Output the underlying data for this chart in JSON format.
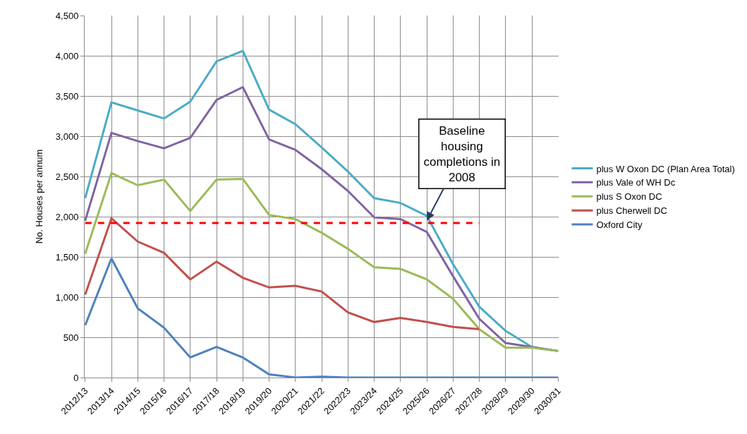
{
  "chart_data": {
    "type": "line",
    "ylabel": "No. Houses per annum",
    "categories": [
      "2012/13",
      "2013/14",
      "2014/15",
      "2015/16",
      "2016/17",
      "2017/18",
      "2018/19",
      "2019/20",
      "2020/21",
      "2021/22",
      "2022/23",
      "2023/24",
      "2024/25",
      "2025/26",
      "2026/27",
      "2027/28",
      "2028/29",
      "2029/30",
      "2030/31"
    ],
    "series": [
      {
        "name": "plus W Oxon DC (Plan Area Total)",
        "color": "#4bacc6",
        "values": [
          2230,
          3420,
          3320,
          3220,
          3430,
          3930,
          4060,
          3330,
          3150,
          2860,
          2560,
          2230,
          2170,
          2010,
          1410,
          880,
          580,
          380,
          330
        ]
      },
      {
        "name": "plus Vale of WH Dc",
        "color": "#8064a2",
        "values": [
          1950,
          3040,
          2940,
          2850,
          2980,
          3450,
          3610,
          2960,
          2830,
          2590,
          2320,
          1990,
          1970,
          1810,
          1260,
          730,
          430,
          380,
          330
        ]
      },
      {
        "name": "plus S Oxon DC",
        "color": "#9bbb59",
        "values": [
          1540,
          2540,
          2390,
          2460,
          2070,
          2460,
          2470,
          2020,
          1970,
          1800,
          1600,
          1370,
          1350,
          1220,
          980,
          600,
          370,
          370,
          330
        ]
      },
      {
        "name": "plus Cherwell DC",
        "color": "#c0504d",
        "values": [
          1030,
          1980,
          1690,
          1550,
          1220,
          1440,
          1240,
          1120,
          1140,
          1070,
          810,
          690,
          740,
          690,
          630,
          600,
          null,
          null,
          null
        ]
      },
      {
        "name": "Oxford City",
        "color": "#4f81bd",
        "values": [
          650,
          1480,
          860,
          620,
          250,
          380,
          250,
          40,
          0,
          10,
          0,
          0,
          0,
          0,
          0,
          0,
          0,
          0,
          0
        ]
      }
    ],
    "ylim": [
      0,
      4500
    ],
    "yticks": [
      0,
      500,
      {
        "value": 1000,
        "label": "1,000"
      },
      {
        "value": 1500,
        "label": "1,500"
      },
      {
        "value": 2000,
        "label": "2,000"
      },
      {
        "value": 2500,
        "label": "2,500"
      },
      {
        "value": 3000,
        "label": "3,000"
      },
      {
        "value": 3500,
        "label": "3,500"
      },
      {
        "value": 4000,
        "label": "4,000"
      },
      {
        "value": 4500,
        "label": "4,500"
      }
    ],
    "ref_lines": [
      {
        "axis": "y",
        "value": 1920,
        "color": "#ff0000",
        "line_style": "dashed"
      }
    ],
    "annotations": [
      {
        "text": "Baseline\nhousing\ncompletions in\n2008",
        "x": "2025/26",
        "y": 1950
      }
    ],
    "grid": true,
    "legend": "right",
    "marker": "none",
    "line_style": "solid"
  }
}
